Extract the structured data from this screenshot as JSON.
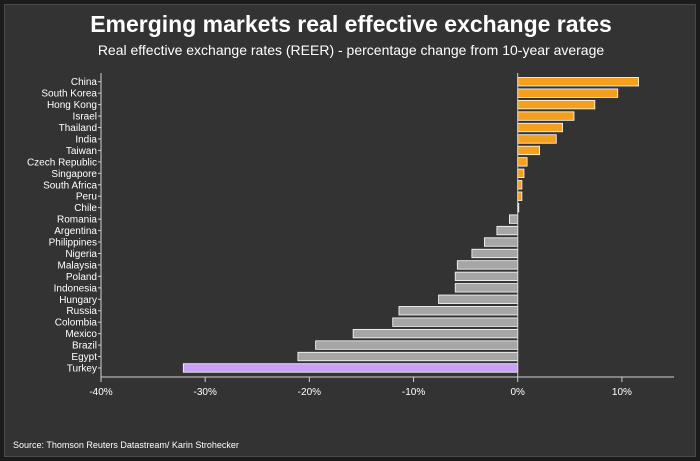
{
  "chart_data": {
    "type": "bar",
    "orientation": "horizontal",
    "title": "Emerging markets real effective exchange rates",
    "subtitle": "Real effective exchange rates (REER) - percentage change from 10-year average",
    "source": "Source: Thomson Reuters Datastream/ Karin Strohecker",
    "categories": [
      "China",
      "South Korea",
      "Hong Kong",
      "Israel",
      "Thailand",
      "India",
      "Taiwan",
      "Czech Republic",
      "Singapore",
      "South Africa",
      "Peru",
      "Chile",
      "Romania",
      "Argentina",
      "Philippines",
      "Nigeria",
      "Malaysia",
      "Poland",
      "Indonesia",
      "Hungary",
      "Russia",
      "Colombia",
      "Mexico",
      "Brazil",
      "Egypt",
      "Turkey"
    ],
    "values": [
      11.6,
      9.6,
      7.4,
      5.4,
      4.3,
      3.7,
      2.1,
      0.9,
      0.6,
      0.4,
      0.4,
      0.1,
      -0.8,
      -2.0,
      -3.2,
      -4.4,
      -5.8,
      -6.0,
      -6.0,
      -7.6,
      -11.4,
      -12.0,
      -15.8,
      -19.4,
      -21.1,
      -32.1
    ],
    "xlim": [
      -40,
      15
    ],
    "xticks": [
      -40,
      -30,
      -20,
      -10,
      0,
      10
    ],
    "xtick_labels": [
      "-40%",
      "-30%",
      "-20%",
      "-10%",
      "0%",
      "10%"
    ],
    "grid": false,
    "colors": {
      "positive": "#f5a01d",
      "negative": "#a6a6a6",
      "highlight": "#c9a0f5",
      "background": "#333333"
    },
    "highlight_category": "Turkey"
  }
}
